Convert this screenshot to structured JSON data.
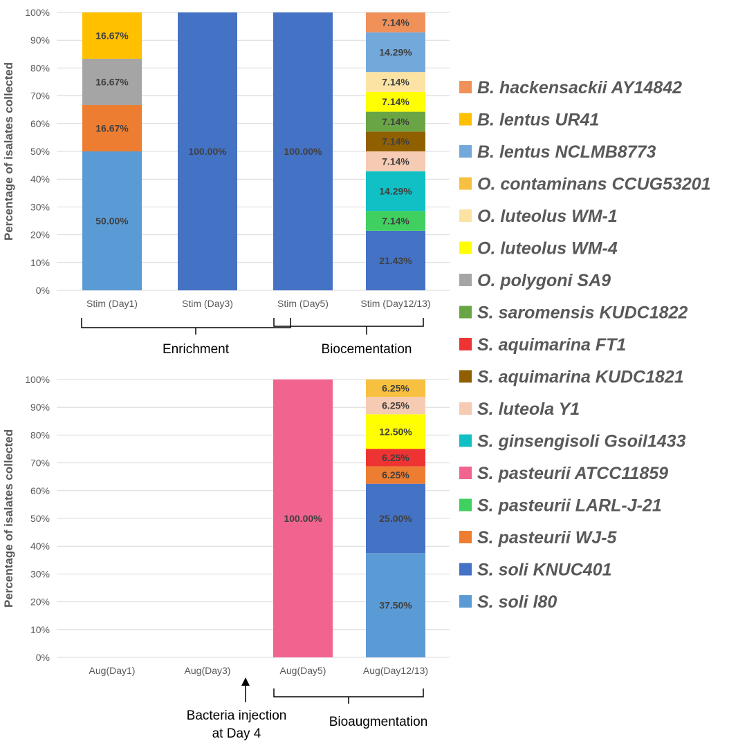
{
  "chart_data": [
    {
      "type": "bar",
      "stacked": true,
      "ylabel": "Percentage of isalates collected",
      "ylim": [
        0,
        100
      ],
      "yticks": [
        "0%",
        "10%",
        "20%",
        "30%",
        "40%",
        "50%",
        "60%",
        "70%",
        "80%",
        "90%",
        "100%"
      ],
      "categories": [
        "Stim (Day1)",
        "Stim (Day3)",
        "Stim (Day5)",
        "Stim (Day12/13)"
      ],
      "stacks": [
        [
          {
            "species": "S. soli l80",
            "value": 50.0,
            "label": "50.00%"
          },
          {
            "species": "S. pasteurii WJ-5",
            "value": 16.67,
            "label": "16.67%"
          },
          {
            "species": "O. polygoni SA9",
            "value": 16.67,
            "label": "16.67%"
          },
          {
            "species": "B. lentus UR41",
            "value": 16.67,
            "label": "16.67%"
          }
        ],
        [
          {
            "species": "S. soli KNUC401",
            "value": 100.0,
            "label": "100.00%"
          }
        ],
        [
          {
            "species": "S. soli KNUC401",
            "value": 100.0,
            "label": "100.00%"
          }
        ],
        [
          {
            "species": "S. soli KNUC401",
            "value": 21.43,
            "label": "21.43%"
          },
          {
            "species": "S. pasteurii LARL-J-21",
            "value": 7.14,
            "label": "7.14%"
          },
          {
            "species": "S. ginsengisoli Gsoil1433",
            "value": 14.29,
            "label": "14.29%"
          },
          {
            "species": "S. luteola Y1",
            "value": 7.14,
            "label": "7.14%"
          },
          {
            "species": "S. aquimarina KUDC1821",
            "value": 7.14,
            "label": "7.14%"
          },
          {
            "species": "S. saromensis KUDC1822",
            "value": 7.14,
            "label": "7.14%"
          },
          {
            "species": "O. luteolus WM-4",
            "value": 7.14,
            "label": "7.14%"
          },
          {
            "species": "O. luteolus WM-1",
            "value": 7.14,
            "label": "7.14%"
          },
          {
            "species": "B. lentus NCLMB8773",
            "value": 14.29,
            "label": "14.29%"
          },
          {
            "species": "B. hackensackii AY14842",
            "value": 7.14,
            "label": "7.14%"
          }
        ]
      ],
      "annotations": [
        {
          "text": "Enrichment",
          "spans": "Stim (Day1) – Stim (Day5)"
        },
        {
          "text": "Biocementation",
          "spans": "Stim (Day5) – Stim (Day12/13)"
        }
      ]
    },
    {
      "type": "bar",
      "stacked": true,
      "ylabel": "Percentage of isalates collected",
      "ylim": [
        0,
        100
      ],
      "yticks": [
        "0%",
        "10%",
        "20%",
        "30%",
        "40%",
        "50%",
        "60%",
        "70%",
        "80%",
        "90%",
        "100%"
      ],
      "categories": [
        "Aug(Day1)",
        "Aug(Day3)",
        "Aug(Day5)",
        "Aug(Day12/13)"
      ],
      "stacks": [
        [],
        [],
        [
          {
            "species": "S. pasteurii ATCC11859",
            "value": 100.0,
            "label": "100.00%"
          }
        ],
        [
          {
            "species": "S. soli l80",
            "value": 37.5,
            "label": "37.50%"
          },
          {
            "species": "S. soli KNUC401",
            "value": 25.0,
            "label": "25.00%"
          },
          {
            "species": "S. pasteurii WJ-5",
            "value": 6.25,
            "label": "6.25%"
          },
          {
            "species": "S. aquimarina FT1",
            "value": 6.25,
            "label": "6.25%"
          },
          {
            "species": "O. luteolus WM-4",
            "value": 12.5,
            "label": "12.50%"
          },
          {
            "species": "S. luteola Y1",
            "value": 6.25,
            "label": "6.25%"
          },
          {
            "species": "O. contaminans CCUG53201",
            "value": 6.25,
            "label": "6.25%"
          }
        ]
      ],
      "annotations": [
        {
          "text": "Bacteria injection",
          "text2": "at Day 4",
          "points_to": "Day 4"
        },
        {
          "text": "Bioaugmentation",
          "spans": "Aug(Day5) – Aug(Day12/13)"
        }
      ]
    }
  ],
  "legend": [
    {
      "name": "B. hackensackii AY14842",
      "color": "#f0915a"
    },
    {
      "name": "B. lentus UR41",
      "color": "#ffc000"
    },
    {
      "name": "B. lentus NCLMB8773",
      "color": "#73a8db"
    },
    {
      "name": "O. contaminans CCUG53201",
      "color": "#f8c040"
    },
    {
      "name": "O. luteolus WM-1",
      "color": "#fde3a3"
    },
    {
      "name": "O. luteolus WM-4",
      "color": "#ffff00"
    },
    {
      "name": "O. polygoni SA9",
      "color": "#a5a5a5"
    },
    {
      "name": "S. saromensis KUDC1822",
      "color": "#6aa545"
    },
    {
      "name": "S. aquimarina FT1",
      "color": "#ee3333"
    },
    {
      "name": "S. aquimarina KUDC1821",
      "color": "#906000"
    },
    {
      "name": "S. luteola Y1",
      "color": "#f6cbb3"
    },
    {
      "name": "S. ginsengisoli Gsoil1433",
      "color": "#11c0c4"
    },
    {
      "name": "S. pasteurii ATCC11859",
      "color": "#f0648f"
    },
    {
      "name": "S. pasteurii LARL-J-21",
      "color": "#40d060"
    },
    {
      "name": "S. pasteurii WJ-5",
      "color": "#ed7d31"
    },
    {
      "name": "S. soli KNUC401",
      "color": "#4472c4"
    },
    {
      "name": "S. soli l80",
      "color": "#5b9bd5"
    }
  ]
}
